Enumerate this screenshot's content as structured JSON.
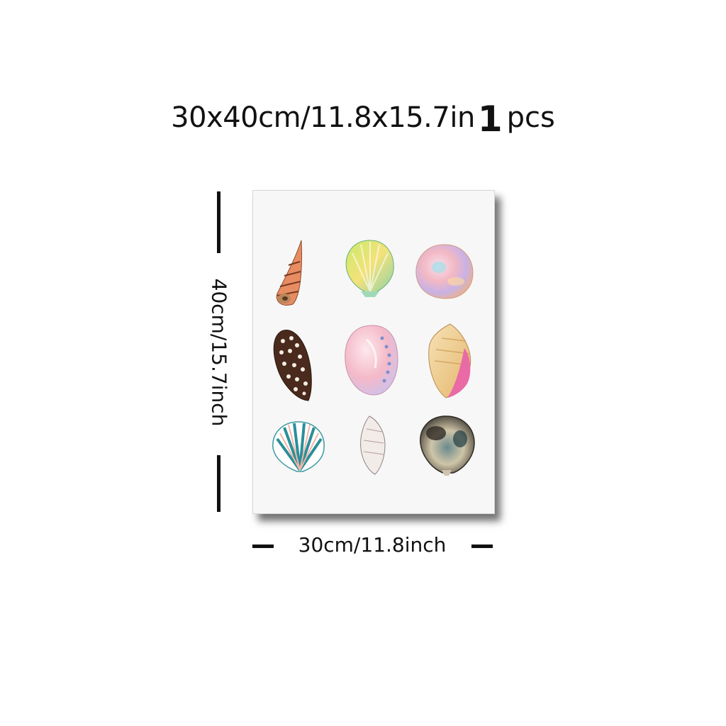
{
  "headline": {
    "size_text": "30x40cm/11.8x15.7in",
    "quantity": "1",
    "unit": "pcs"
  },
  "dimensions": {
    "height_label": "40cm/15.7inch",
    "width_label": "30cm/11.8inch"
  },
  "artwork": {
    "subject": "seashells",
    "shells": [
      {
        "name": "auger-shell-orange",
        "row": 1,
        "col": 1
      },
      {
        "name": "scallop-shell-green-yellow",
        "row": 1,
        "col": 2
      },
      {
        "name": "clam-shell-iridescent",
        "row": 1,
        "col": 3
      },
      {
        "name": "cone-shell-brown-spotted",
        "row": 2,
        "col": 1
      },
      {
        "name": "abalone-shell-pink",
        "row": 2,
        "col": 2
      },
      {
        "name": "conch-shell-pink-lip",
        "row": 2,
        "col": 3
      },
      {
        "name": "scallop-shell-teal",
        "row": 3,
        "col": 1
      },
      {
        "name": "whelk-shell-white",
        "row": 3,
        "col": 2
      },
      {
        "name": "scallop-shell-dark-pearl",
        "row": 3,
        "col": 3
      }
    ]
  }
}
